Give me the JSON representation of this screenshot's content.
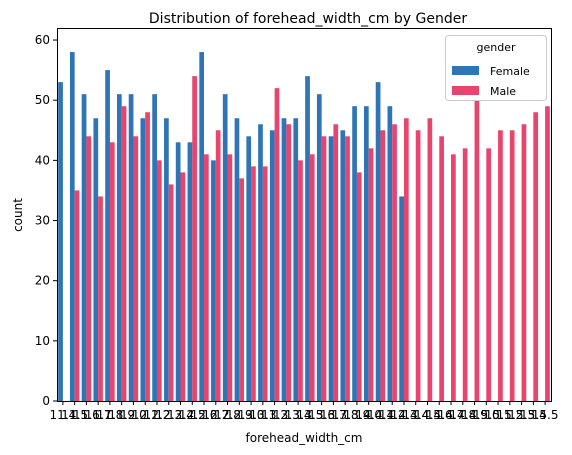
{
  "chart_data": {
    "type": "bar",
    "title": "Distribution of forehead_width_cm by Gender",
    "xlabel": "forehead_width_cm",
    "ylabel": "count",
    "ylim": [
      0,
      62
    ],
    "yticks": [
      0,
      10,
      20,
      30,
      40,
      50,
      60
    ],
    "grid": false,
    "legend_title": "gender",
    "legend_position": "top-right",
    "categories": [
      "11.4",
      "11.5",
      "11.6",
      "11.7",
      "11.8",
      "11.9",
      "12.0",
      "12.1",
      "12.2",
      "12.3",
      "12.4",
      "12.5",
      "12.6",
      "12.7",
      "12.8",
      "12.9",
      "13.0",
      "13.1",
      "13.2",
      "13.3",
      "13.4",
      "13.5",
      "13.6",
      "13.7",
      "13.8",
      "13.9",
      "14.0",
      "14.1",
      "14.2",
      "14.3",
      "14.4",
      "14.5",
      "14.6",
      "14.7",
      "14.8",
      "14.9",
      "15.0",
      "15.1",
      "15.2",
      "15.3",
      "15.4",
      "15.5"
    ],
    "tick_labels": [
      "11.4",
      "11.5",
      "11.6",
      "11.7",
      "11.8",
      "11.9",
      "12.0",
      "12.1",
      "12.2",
      "12.3",
      "12.4",
      "12.5",
      "12.6",
      "12.7",
      "12.8",
      "12.9",
      "13.0",
      "13.1",
      "13.2",
      "13.3",
      "13.4",
      "13.5",
      "13.6",
      "13.7",
      "13.8",
      "13.9",
      "14.0",
      "14.1",
      "14.2",
      "14.3",
      "14.4",
      "14.5",
      "14.6",
      "14.7",
      "14.8",
      "14.9",
      "15.0",
      "15.1",
      "15.2",
      "15.3",
      "15.4",
      "15.5"
    ],
    "series": [
      {
        "name": "Female",
        "color": "#2f74b5",
        "values": [
          53,
          58,
          51,
          47,
          55,
          51,
          51,
          47,
          51,
          47,
          43,
          43,
          58,
          40,
          51,
          47,
          44,
          46,
          45,
          47,
          47,
          54,
          51,
          44,
          45,
          49,
          49,
          53,
          49,
          34,
          null,
          null,
          null,
          null,
          null,
          null,
          null,
          null,
          null,
          null,
          null,
          null
        ]
      },
      {
        "name": "Male",
        "color": "#e8456e",
        "values": [
          null,
          35,
          44,
          34,
          43,
          49,
          44,
          48,
          40,
          36,
          38,
          54,
          41,
          45,
          41,
          37,
          39,
          39,
          52,
          46,
          40,
          41,
          44,
          46,
          44,
          38,
          42,
          45,
          46,
          47,
          45,
          47,
          44,
          41,
          42,
          50,
          42,
          45,
          45,
          46,
          48,
          49
        ]
      }
    ]
  }
}
